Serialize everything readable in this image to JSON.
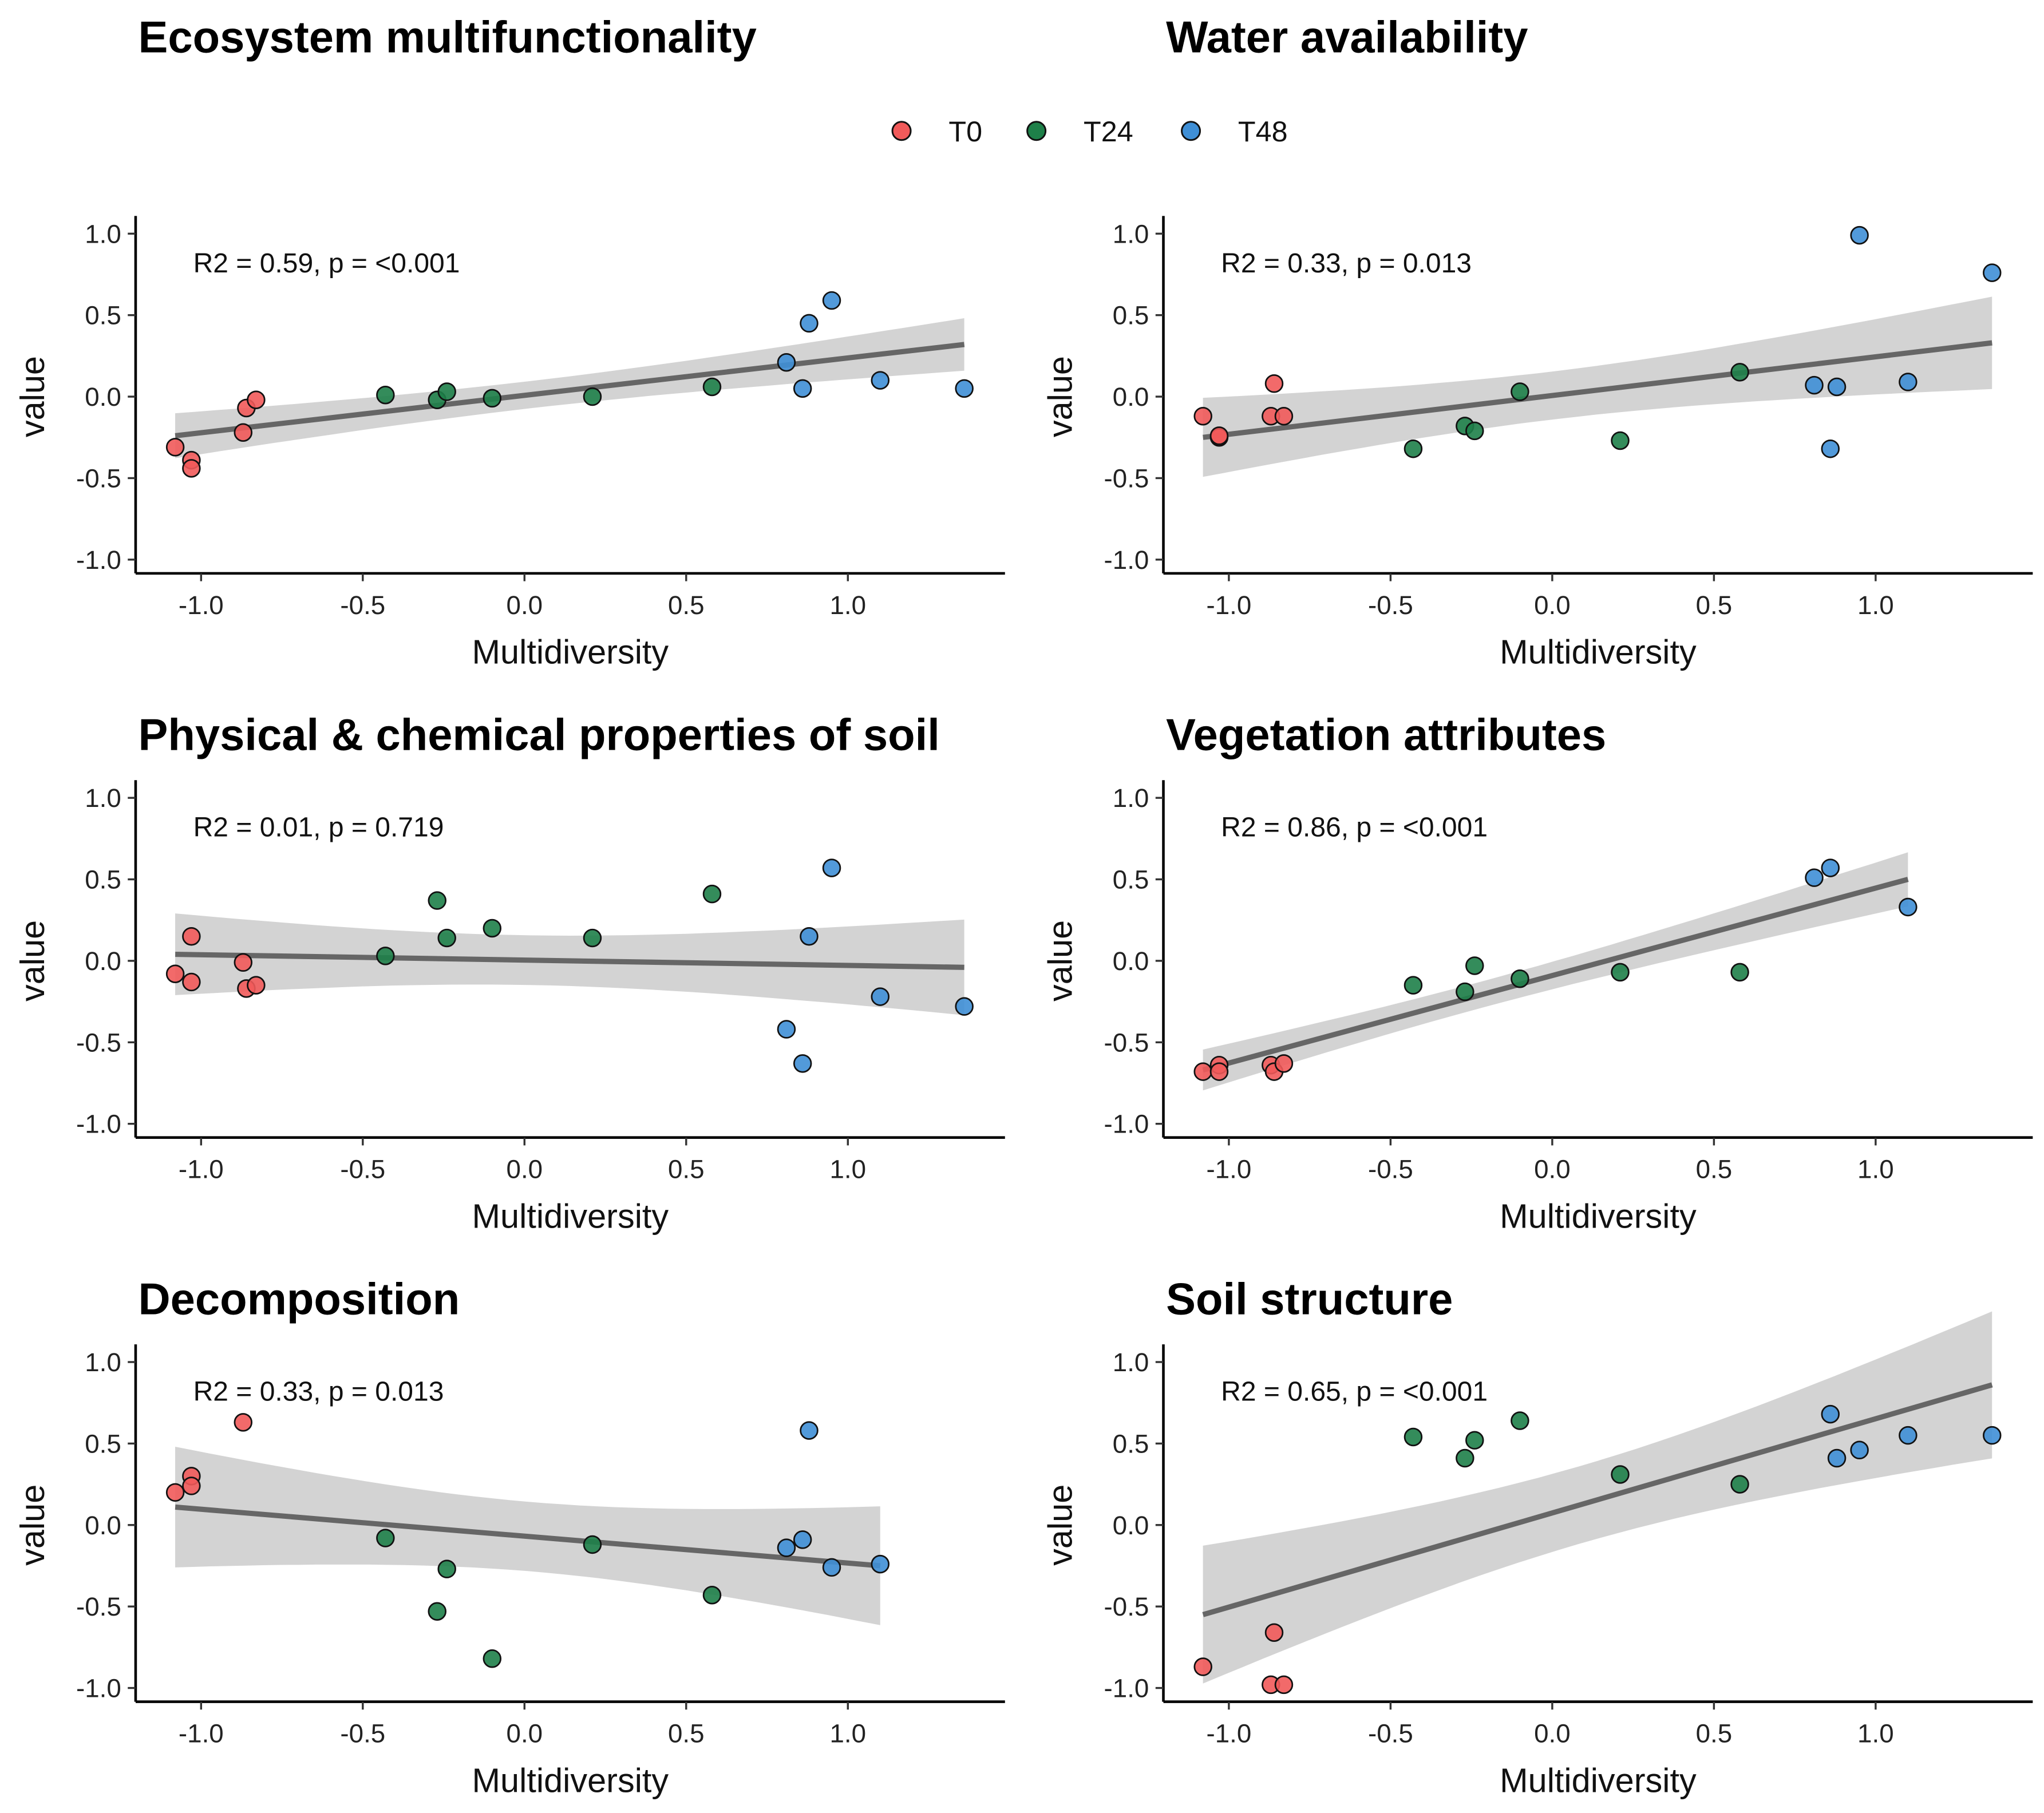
{
  "legend": {
    "items": [
      {
        "label": "T0",
        "color": "#F15A5A"
      },
      {
        "label": "T24",
        "color": "#1E8049"
      },
      {
        "label": "T48",
        "color": "#3F8FD6"
      }
    ]
  },
  "chart_data": [
    {
      "type": "scatter",
      "title": "Ecosystem multifunctionality",
      "xlabel": "Multidiversity",
      "ylabel": "value",
      "annotation": "R2 = 0.59, p = <0.001",
      "xlim": [
        -1.2,
        1.45
      ],
      "ylim": [
        -1.1,
        1.1
      ],
      "xticks": [
        "-1.0",
        "-0.5",
        "0.0",
        "0.5",
        "1.0"
      ],
      "yticks": [
        "-1.0",
        "-0.5",
        "0.0",
        "0.5",
        "1.0"
      ],
      "fit": {
        "x": [
          -1.08,
          1.36
        ],
        "y": [
          -0.24,
          0.32
        ]
      },
      "series": [
        {
          "name": "T0",
          "x": [
            -1.08,
            -1.03,
            -1.03,
            -0.87,
            -0.86,
            -0.83
          ],
          "y": [
            -0.31,
            -0.39,
            -0.44,
            -0.22,
            -0.07,
            -0.02
          ]
        },
        {
          "name": "T24",
          "x": [
            -0.43,
            -0.27,
            -0.24,
            -0.1,
            0.21,
            0.58
          ],
          "y": [
            0.01,
            -0.02,
            0.03,
            -0.01,
            0.0,
            0.06
          ]
        },
        {
          "name": "T48",
          "x": [
            0.81,
            0.86,
            0.88,
            0.95,
            1.1,
            1.36
          ],
          "y": [
            0.21,
            0.05,
            0.45,
            0.59,
            0.1,
            0.05
          ]
        }
      ]
    },
    {
      "type": "scatter",
      "title": "Water availability",
      "xlabel": "Multidiversity",
      "ylabel": "value",
      "annotation": "R2 = 0.33, p = 0.013",
      "xlim": [
        -1.2,
        1.45
      ],
      "ylim": [
        -1.1,
        1.1
      ],
      "xticks": [
        "-1.0",
        "-0.5",
        "0.0",
        "0.5",
        "1.0"
      ],
      "yticks": [
        "-1.0",
        "-0.5",
        "0.0",
        "0.5",
        "1.0"
      ],
      "fit": {
        "x": [
          -1.08,
          1.36
        ],
        "y": [
          -0.25,
          0.33
        ]
      },
      "series": [
        {
          "name": "T0",
          "x": [
            -1.08,
            -1.03,
            -1.03,
            -0.87,
            -0.86,
            -0.83
          ],
          "y": [
            -0.12,
            -0.25,
            -0.24,
            -0.12,
            0.08,
            -0.12
          ]
        },
        {
          "name": "T24",
          "x": [
            -0.43,
            -0.27,
            -0.24,
            -0.1,
            0.21,
            0.58
          ],
          "y": [
            -0.32,
            -0.18,
            -0.21,
            0.03,
            -0.27,
            0.15
          ]
        },
        {
          "name": "T48",
          "x": [
            0.81,
            0.86,
            0.88,
            0.95,
            1.1,
            1.36
          ],
          "y": [
            0.07,
            -0.32,
            0.06,
            0.99,
            0.09,
            0.76
          ]
        }
      ]
    },
    {
      "type": "scatter",
      "title": "Physical & chemical properties of soil",
      "xlabel": "Multidiversity",
      "ylabel": "value",
      "annotation": "R2 = 0.01, p = 0.719",
      "xlim": [
        -1.2,
        1.45
      ],
      "ylim": [
        -1.1,
        1.1
      ],
      "xticks": [
        "-1.0",
        "-0.5",
        "0.0",
        "0.5",
        "1.0"
      ],
      "yticks": [
        "-1.0",
        "-0.5",
        "0.0",
        "0.5",
        "1.0"
      ],
      "fit": {
        "x": [
          -1.08,
          1.36
        ],
        "y": [
          0.04,
          -0.04
        ]
      },
      "series": [
        {
          "name": "T0",
          "x": [
            -1.08,
            -1.03,
            -1.03,
            -0.87,
            -0.86,
            -0.83
          ],
          "y": [
            -0.08,
            0.15,
            -0.13,
            -0.01,
            -0.17,
            -0.15
          ]
        },
        {
          "name": "T24",
          "x": [
            -0.43,
            -0.27,
            -0.24,
            -0.1,
            0.21,
            0.58
          ],
          "y": [
            0.03,
            0.37,
            0.14,
            0.2,
            0.14,
            0.41
          ]
        },
        {
          "name": "T48",
          "x": [
            0.81,
            0.86,
            0.88,
            0.95,
            1.1,
            1.36
          ],
          "y": [
            -0.42,
            -0.63,
            0.15,
            0.57,
            -0.22,
            -0.28
          ]
        }
      ]
    },
    {
      "type": "scatter",
      "title": "Vegetation attributes",
      "xlabel": "Multidiversity",
      "ylabel": "value",
      "annotation": "R2 = 0.86, p = <0.001",
      "xlim": [
        -1.2,
        1.45
      ],
      "ylim": [
        -1.1,
        1.1
      ],
      "xticks": [
        "-1.0",
        "-0.5",
        "0.0",
        "0.5",
        "1.0"
      ],
      "yticks": [
        "-1.0",
        "-0.5",
        "0.0",
        "0.5",
        "1.0"
      ],
      "fit": {
        "x": [
          -1.08,
          1.1
        ],
        "y": [
          -0.67,
          0.5
        ]
      },
      "series": [
        {
          "name": "T0",
          "x": [
            -1.08,
            -1.03,
            -1.03,
            -0.87,
            -0.86,
            -0.83
          ],
          "y": [
            -0.68,
            -0.64,
            -0.68,
            -0.64,
            -0.68,
            -0.63
          ]
        },
        {
          "name": "T24",
          "x": [
            -0.43,
            -0.27,
            -0.24,
            -0.1,
            0.21,
            0.58
          ],
          "y": [
            -0.15,
            -0.19,
            -0.03,
            -0.11,
            -0.07,
            -0.07
          ]
        },
        {
          "name": "T48",
          "x": [
            0.81,
            0.86,
            1.1
          ],
          "y": [
            0.51,
            0.57,
            0.33
          ]
        }
      ]
    },
    {
      "type": "scatter",
      "title": "Decomposition",
      "xlabel": "Multidiversity",
      "ylabel": "value",
      "annotation": "R2 = 0.33, p = 0.013",
      "xlim": [
        -1.2,
        1.45
      ],
      "ylim": [
        -1.1,
        1.1
      ],
      "xticks": [
        "-1.0",
        "-0.5",
        "0.0",
        "0.5",
        "1.0"
      ],
      "yticks": [
        "-1.0",
        "-0.5",
        "0.0",
        "0.5",
        "1.0"
      ],
      "fit": {
        "x": [
          -1.08,
          1.1
        ],
        "y": [
          0.11,
          -0.25
        ]
      },
      "series": [
        {
          "name": "T0",
          "x": [
            -1.08,
            -1.03,
            -1.03,
            -0.87
          ],
          "y": [
            0.2,
            0.3,
            0.24,
            0.63
          ]
        },
        {
          "name": "T24",
          "x": [
            -0.43,
            -0.27,
            -0.24,
            -0.1,
            0.21,
            0.58
          ],
          "y": [
            -0.08,
            -0.53,
            -0.27,
            -0.82,
            -0.12,
            -0.43
          ]
        },
        {
          "name": "T48",
          "x": [
            0.81,
            0.86,
            0.88,
            0.95,
            1.1
          ],
          "y": [
            -0.14,
            -0.09,
            0.58,
            -0.26,
            -0.24
          ]
        }
      ]
    },
    {
      "type": "scatter",
      "title": "Soil structure",
      "xlabel": "Multidiversity",
      "ylabel": "value",
      "annotation": "R2 = 0.65, p = <0.001",
      "xlim": [
        -1.2,
        1.45
      ],
      "ylim": [
        -1.1,
        1.1
      ],
      "xticks": [
        "-1.0",
        "-0.5",
        "0.0",
        "0.5",
        "1.0"
      ],
      "yticks": [
        "-1.0",
        "-0.5",
        "0.0",
        "0.5",
        "1.0"
      ],
      "fit": {
        "x": [
          -1.08,
          1.36
        ],
        "y": [
          -0.55,
          0.86
        ]
      },
      "series": [
        {
          "name": "T0",
          "x": [
            -1.08,
            -0.87,
            -0.86,
            -0.83
          ],
          "y": [
            -0.87,
            -0.98,
            -0.66,
            -0.98
          ]
        },
        {
          "name": "T24",
          "x": [
            -0.43,
            -0.27,
            -0.24,
            -0.1,
            0.21,
            0.58
          ],
          "y": [
            0.54,
            0.41,
            0.52,
            0.64,
            0.31,
            0.25
          ]
        },
        {
          "name": "T48",
          "x": [
            0.86,
            0.88,
            0.95,
            1.1,
            1.36
          ],
          "y": [
            0.68,
            0.41,
            0.46,
            0.55,
            0.55
          ]
        }
      ]
    }
  ]
}
